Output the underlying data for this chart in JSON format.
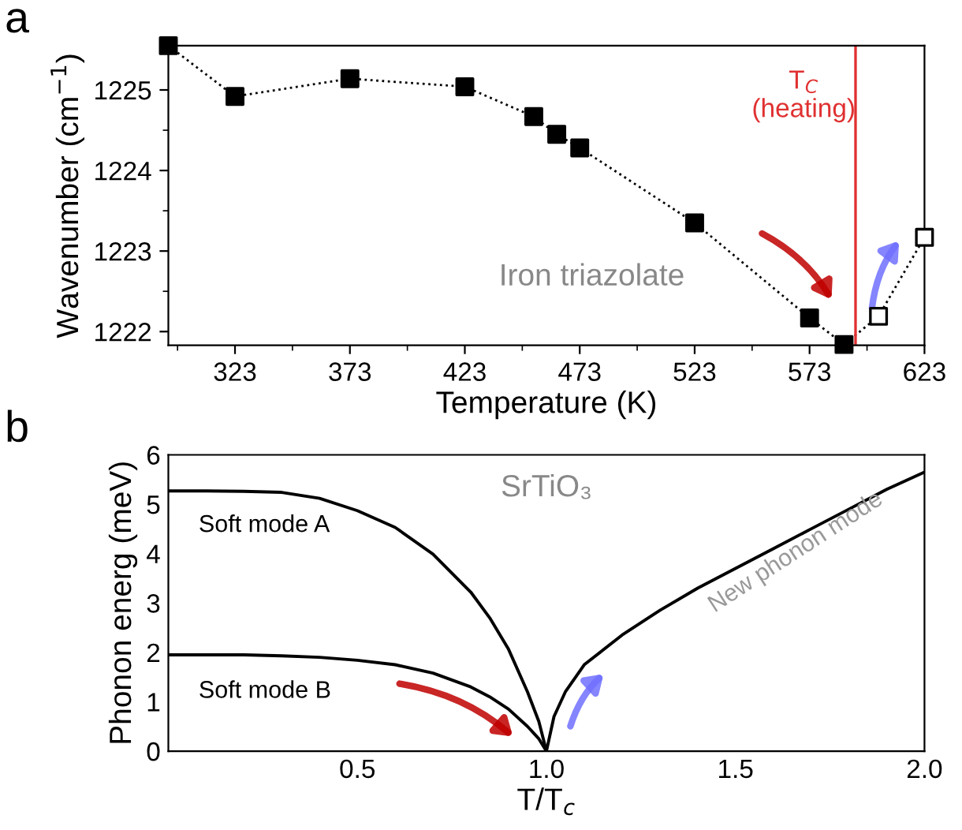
{
  "chart_data": [
    {
      "type": "line",
      "title": "Iron triazolate",
      "xlabel": "Temperature (K)",
      "ylabel": "Wavenumber (cm$^{−1}$)",
      "x": [
        294,
        323,
        373,
        423,
        453,
        463,
        473,
        523,
        573,
        588,
        603,
        623
      ],
      "series": [
        {
          "color": "#000000",
          "colors": [
            "#000000",
            "#000000",
            "#000000",
            "#000000",
            "#000000",
            "#000000",
            "#000000",
            "#000000",
            "#000000",
            "#000000",
            "#ffffff",
            "#ffffff"
          ],
          "values": [
            1225.55,
            1224.92,
            1225.14,
            1225.04,
            1224.67,
            1224.45,
            1224.28,
            1223.35,
            1222.17,
            1221.84,
            1222.19,
            1223.17
          ]
        }
      ],
      "marker": "square",
      "line_style": "dotted",
      "xlim": [
        294,
        623
      ],
      "xticks": [
        323,
        373,
        423,
        473,
        523,
        573,
        623
      ],
      "ylim": [
        1221.83,
        1225.55
      ],
      "yticks": [
        1222,
        1223,
        1224,
        1225
      ],
      "ref_lines": [
        {
          "axis": "x",
          "value": 593,
          "label": "T$_{C}$\n(heating)",
          "color": "#e03030"
        }
      ],
      "annotations": [
        "a"
      ],
      "grid": false,
      "legend": false
    },
    {
      "type": "line",
      "title": "SrTiO₃",
      "xlabel": "T/T$_{c}$",
      "ylabel": "Phonon energ (meV)",
      "series": [
        {
          "name": "Soft mode A",
          "color": "#000000",
          "x": [
            0,
            0.1,
            0.2,
            0.3,
            0.4,
            0.5,
            0.6,
            0.7,
            0.8,
            0.85,
            0.9,
            0.95,
            0.98,
            1.0
          ],
          "values": [
            5.27,
            5.27,
            5.26,
            5.24,
            5.12,
            4.87,
            4.53,
            3.99,
            3.22,
            2.7,
            2.06,
            1.2,
            0.6,
            0
          ]
        },
        {
          "name": "Soft mode B",
          "color": "#000000",
          "x": [
            0,
            0.1,
            0.2,
            0.3,
            0.4,
            0.5,
            0.6,
            0.7,
            0.8,
            0.85,
            0.9,
            0.95,
            0.98,
            1.0
          ],
          "values": [
            1.95,
            1.95,
            1.95,
            1.93,
            1.9,
            1.84,
            1.75,
            1.58,
            1.3,
            1.1,
            0.85,
            0.5,
            0.25,
            0
          ]
        },
        {
          "name": "New phonon mode",
          "color": "#000000",
          "x": [
            1.0,
            1.02,
            1.05,
            1.1,
            1.2,
            1.3,
            1.4,
            1.5,
            1.6,
            1.7,
            1.8,
            1.9,
            2.0
          ],
          "values": [
            0,
            0.7,
            1.2,
            1.75,
            2.35,
            2.85,
            3.3,
            3.7,
            4.1,
            4.5,
            4.9,
            5.3,
            5.65
          ]
        }
      ],
      "xlim": [
        0,
        2
      ],
      "xticks": [
        0.5,
        {
          "value": 1,
          "label": "1.0"
        },
        1.5,
        {
          "value": 2,
          "label": "2.0"
        }
      ],
      "ylim": [
        0,
        6
      ],
      "yticks": [
        0,
        1,
        2,
        3,
        4,
        5,
        6
      ],
      "annotations": [
        "b"
      ],
      "grid": false,
      "legend": false
    }
  ]
}
